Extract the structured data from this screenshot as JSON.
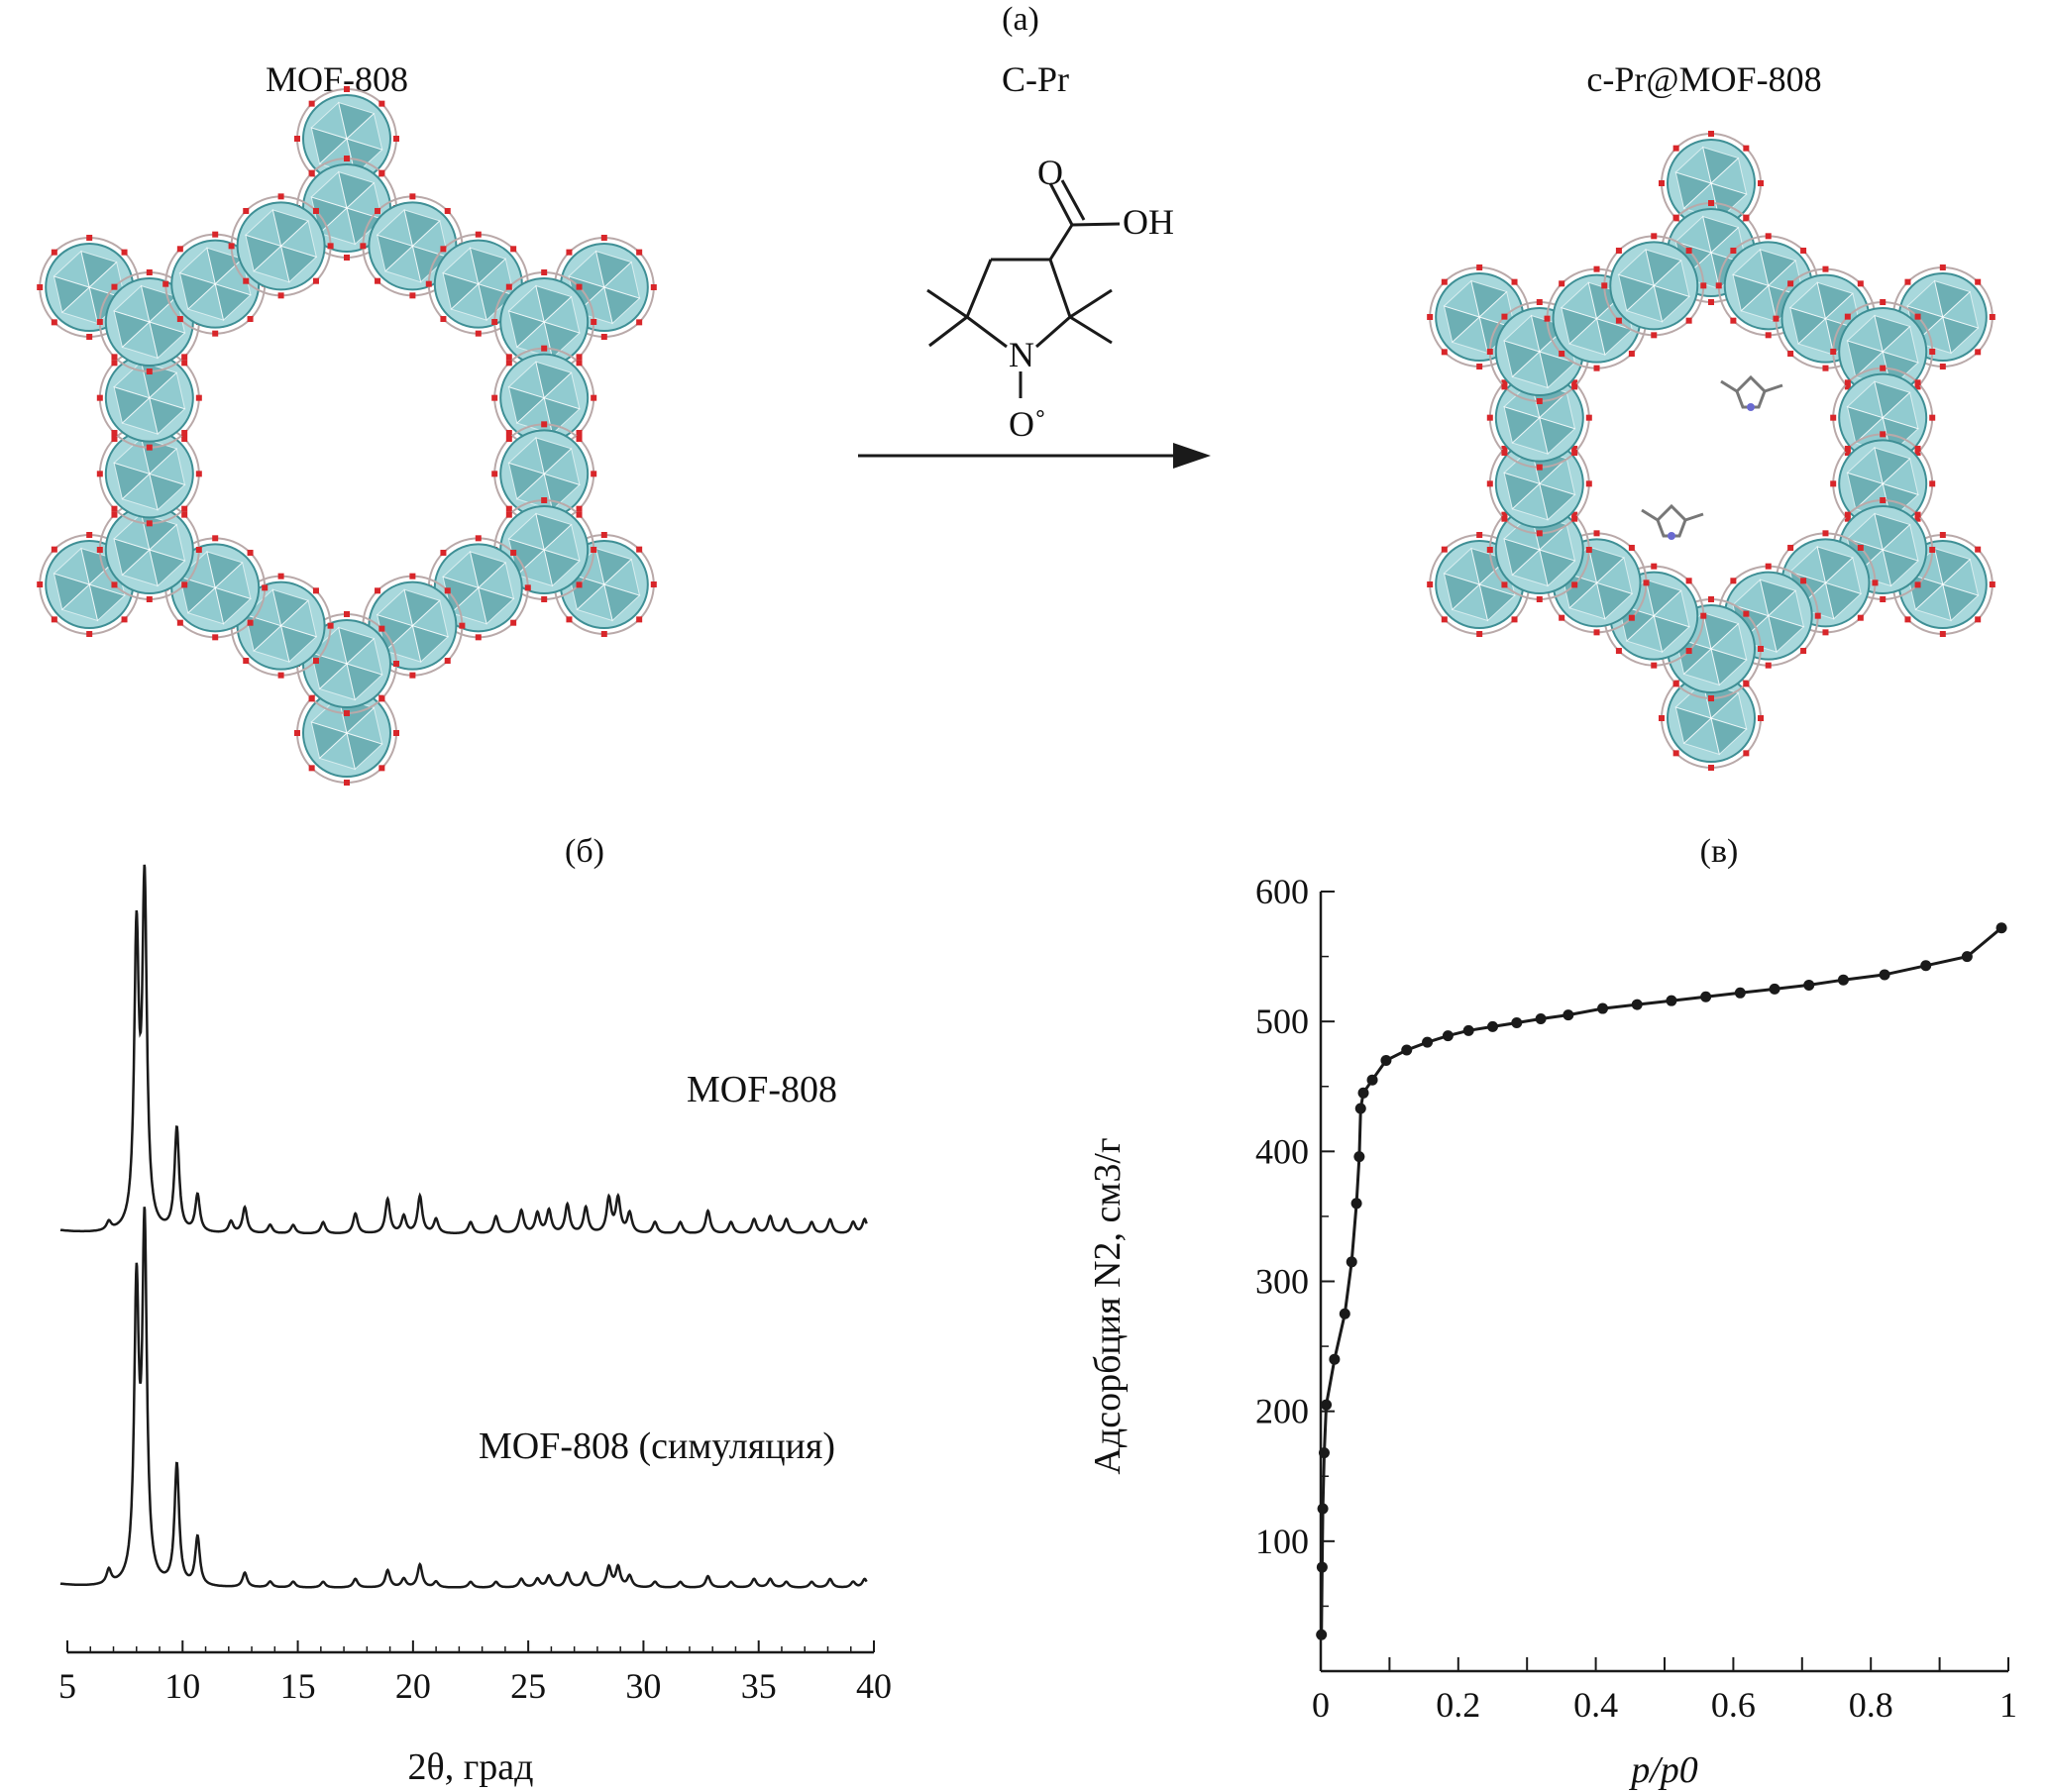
{
  "panels": {
    "a": {
      "label": "(a)",
      "left_title": "MOF-808",
      "middle_title": "C-Pr",
      "right_title": "c-Pr@MOF-808",
      "molecule": {
        "atom_o_top": "O",
        "atom_oh": "OH",
        "atom_n": "N",
        "atom_o_radical": "O˚"
      }
    },
    "b": {
      "label": "(б)"
    },
    "c": {
      "label": "(в)"
    }
  },
  "colors": {
    "framework_light": "#a8d8dc",
    "framework_mid": "#7fc2c8",
    "framework_dark": "#3e8f95",
    "oxygen": "#d8262a",
    "line": "#1a1a1a"
  },
  "chart_data": [
    {
      "type": "line",
      "panel": "(б)",
      "xlabel": "2θ, град",
      "ylabel": "",
      "xlim": [
        5,
        40
      ],
      "xticks": [
        5,
        10,
        15,
        20,
        25,
        30,
        35,
        40
      ],
      "yaxis_shown": false,
      "series": [
        {
          "name": "MOF-808",
          "peaks": [
            [
              6.8,
              0.03
            ],
            [
              8.0,
              1.0
            ],
            [
              8.35,
              1.18
            ],
            [
              9.75,
              0.36
            ],
            [
              10.65,
              0.13
            ],
            [
              12.1,
              0.04
            ],
            [
              12.7,
              0.09
            ],
            [
              13.8,
              0.03
            ],
            [
              14.8,
              0.03
            ],
            [
              16.1,
              0.04
            ],
            [
              17.5,
              0.07
            ],
            [
              18.9,
              0.12
            ],
            [
              19.6,
              0.06
            ],
            [
              20.3,
              0.13
            ],
            [
              21.0,
              0.05
            ],
            [
              22.5,
              0.04
            ],
            [
              23.6,
              0.06
            ],
            [
              24.7,
              0.08
            ],
            [
              25.4,
              0.07
            ],
            [
              25.9,
              0.08
            ],
            [
              26.7,
              0.1
            ],
            [
              27.5,
              0.09
            ],
            [
              28.5,
              0.12
            ],
            [
              28.9,
              0.12
            ],
            [
              29.4,
              0.07
            ],
            [
              30.5,
              0.04
            ],
            [
              31.6,
              0.04
            ],
            [
              32.8,
              0.08
            ],
            [
              33.8,
              0.04
            ],
            [
              34.8,
              0.05
            ],
            [
              35.5,
              0.06
            ],
            [
              36.2,
              0.05
            ],
            [
              37.3,
              0.04
            ],
            [
              38.1,
              0.05
            ],
            [
              39.1,
              0.04
            ],
            [
              39.6,
              0.05
            ]
          ]
        },
        {
          "name": "MOF-808 (симуляция)",
          "peaks": [
            [
              6.8,
              0.05
            ],
            [
              8.0,
              1.0
            ],
            [
              8.35,
              1.22
            ],
            [
              9.75,
              0.42
            ],
            [
              10.65,
              0.17
            ],
            [
              12.7,
              0.05
            ],
            [
              13.8,
              0.02
            ],
            [
              14.8,
              0.02
            ],
            [
              16.1,
              0.02
            ],
            [
              17.5,
              0.03
            ],
            [
              18.9,
              0.06
            ],
            [
              19.6,
              0.03
            ],
            [
              20.3,
              0.08
            ],
            [
              21.0,
              0.02
            ],
            [
              22.5,
              0.02
            ],
            [
              23.6,
              0.02
            ],
            [
              24.7,
              0.03
            ],
            [
              25.4,
              0.03
            ],
            [
              25.9,
              0.04
            ],
            [
              26.7,
              0.05
            ],
            [
              27.5,
              0.05
            ],
            [
              28.5,
              0.07
            ],
            [
              28.9,
              0.07
            ],
            [
              29.4,
              0.04
            ],
            [
              30.5,
              0.02
            ],
            [
              31.6,
              0.02
            ],
            [
              32.8,
              0.04
            ],
            [
              33.8,
              0.02
            ],
            [
              34.8,
              0.03
            ],
            [
              35.5,
              0.03
            ],
            [
              36.2,
              0.02
            ],
            [
              37.3,
              0.02
            ],
            [
              38.1,
              0.03
            ],
            [
              39.1,
              0.02
            ],
            [
              39.6,
              0.03
            ]
          ]
        }
      ]
    },
    {
      "type": "line",
      "panel": "(в)",
      "xlabel": "p/p0",
      "ylabel": "Адсорбция N2, см3/г",
      "xlim": [
        0,
        1
      ],
      "ylim": [
        0,
        600
      ],
      "xticks": [
        0,
        0.2,
        0.4,
        0.6,
        0.8,
        1
      ],
      "xtick_labels": [
        "0",
        "0.2",
        "0.4",
        "0.6",
        "0.8",
        "1"
      ],
      "yticks": [
        100,
        200,
        300,
        400,
        500,
        600
      ],
      "series": [
        {
          "name": "",
          "x": [
            0.001,
            0.002,
            0.003,
            0.005,
            0.008,
            0.02,
            0.035,
            0.045,
            0.052,
            0.056,
            0.058,
            0.062,
            0.075,
            0.095,
            0.125,
            0.155,
            0.185,
            0.215,
            0.25,
            0.285,
            0.32,
            0.36,
            0.41,
            0.46,
            0.51,
            0.56,
            0.61,
            0.66,
            0.71,
            0.76,
            0.82,
            0.88,
            0.94,
            0.99
          ],
          "y": [
            28,
            80,
            125,
            168,
            205,
            240,
            275,
            315,
            360,
            396,
            433,
            445,
            455,
            470,
            478,
            484,
            489,
            493,
            496,
            499,
            502,
            505,
            510,
            513,
            516,
            519,
            522,
            525,
            528,
            532,
            536,
            543,
            550,
            572
          ]
        }
      ]
    }
  ]
}
